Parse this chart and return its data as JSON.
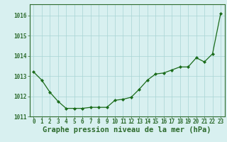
{
  "x": [
    0,
    1,
    2,
    3,
    4,
    5,
    6,
    7,
    8,
    9,
    10,
    11,
    12,
    13,
    14,
    15,
    16,
    17,
    18,
    19,
    20,
    21,
    22,
    23
  ],
  "y": [
    1013.2,
    1012.8,
    1012.2,
    1011.75,
    1011.4,
    1011.4,
    1011.4,
    1011.45,
    1011.45,
    1011.45,
    1011.8,
    1011.85,
    1011.95,
    1012.35,
    1012.8,
    1013.1,
    1013.15,
    1013.3,
    1013.45,
    1013.45,
    1013.9,
    1013.7,
    1014.1,
    1016.1
  ],
  "line_color": "#1a6b1a",
  "marker_color": "#1a6b1a",
  "bg_color": "#d8f0f0",
  "grid_color": "#a8d4d4",
  "axis_color": "#2d6b2d",
  "title": "Graphe pression niveau de la mer (hPa)",
  "ylim_min": 1011.0,
  "ylim_max": 1016.55,
  "yticks": [
    1011,
    1012,
    1013,
    1014,
    1015,
    1016
  ],
  "xticks": [
    0,
    1,
    2,
    3,
    4,
    5,
    6,
    7,
    8,
    9,
    10,
    11,
    12,
    13,
    14,
    15,
    16,
    17,
    18,
    19,
    20,
    21,
    22,
    23
  ],
  "title_fontsize": 7.5,
  "tick_fontsize": 5.5
}
